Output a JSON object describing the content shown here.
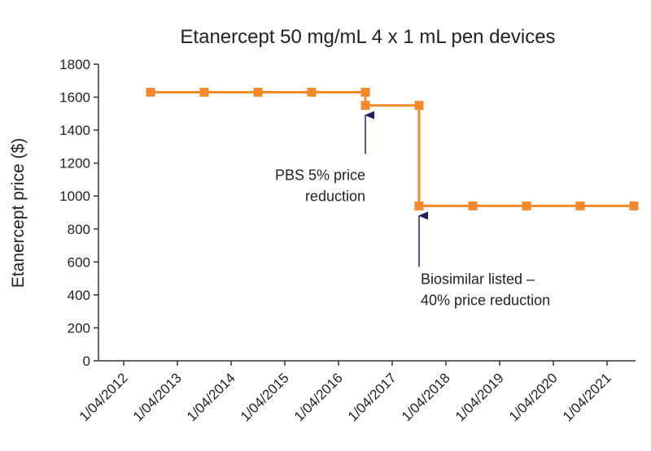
{
  "chart_data": {
    "type": "line",
    "title": "Etanercept 50 mg/mL 4 x 1 mL pen devices",
    "xlabel": "",
    "ylabel": "Etanercept price ($)",
    "ylim": [
      0,
      1800
    ],
    "yticks": [
      0,
      200,
      400,
      600,
      800,
      1000,
      1200,
      1400,
      1600,
      1800
    ],
    "xticks": [
      "1/04/2012",
      "1/04/2013",
      "1/04/2014",
      "1/04/2015",
      "1/04/2016",
      "1/04/2017",
      "1/04/2018",
      "1/04/2019",
      "1/04/2020",
      "1/04/2021"
    ],
    "grid": false,
    "legend": "none",
    "series": [
      {
        "color": "#f5892a",
        "marker": "square",
        "x": [
          "1/10/2012",
          "1/10/2013",
          "1/10/2014",
          "1/10/2015",
          "1/10/2016",
          "1/10/2016",
          "1/10/2017",
          "1/10/2017",
          "1/10/2018",
          "1/10/2019",
          "1/10/2020",
          "1/10/2021"
        ],
        "y": [
          1630,
          1630,
          1630,
          1630,
          1630,
          1550,
          1550,
          940,
          940,
          940,
          940,
          940
        ]
      }
    ],
    "annotations": [
      {
        "lines": [
          "PBS 5% price",
          "reduction"
        ],
        "x": "1/10/2016",
        "y": 1550,
        "arrow_color": "#2e1a5e"
      },
      {
        "lines": [
          "Biosimilar listed –",
          "40% price reduction"
        ],
        "x": "1/10/2017",
        "y": 940,
        "arrow_color": "#2e1a5e"
      }
    ]
  }
}
